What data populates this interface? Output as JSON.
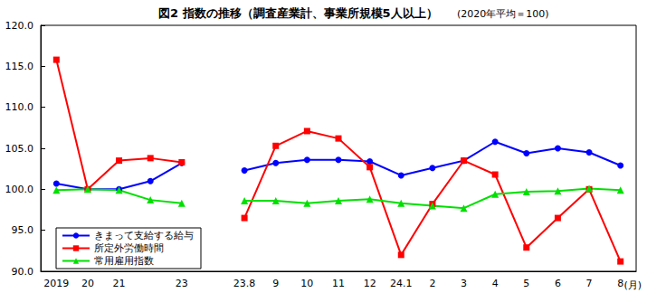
{
  "chart_data": {
    "type": "line",
    "title": "図2 指数の推移（調査産業計、事業所規模5人以上）",
    "subtitle": "(2020年平均＝100)",
    "x_label": "(月)",
    "categories": [
      "2019",
      "20",
      "21",
      null,
      "23",
      null,
      "23.8",
      "9",
      "10",
      "11",
      "12",
      "24.1",
      "2",
      "3",
      "4",
      "5",
      "6",
      "7",
      "8"
    ],
    "series": [
      {
        "name": "きまって支給する給与",
        "color": "#0000ff",
        "marker": "circle",
        "line_style": "solid",
        "values": [
          100.7,
          100.0,
          100.0,
          101.0,
          103.2,
          null,
          102.3,
          103.2,
          103.6,
          103.6,
          103.4,
          101.7,
          102.6,
          103.5,
          105.8,
          104.4,
          105.0,
          104.5,
          102.9
        ]
      },
      {
        "name": "所定外労働時間",
        "color": "#ff0000",
        "marker": "square",
        "line_style": "solid",
        "values": [
          115.8,
          100.0,
          103.5,
          103.8,
          103.3,
          null,
          96.5,
          105.3,
          107.1,
          106.2,
          102.7,
          92.0,
          98.2,
          103.5,
          101.8,
          92.9,
          96.5,
          100.0,
          91.2
        ]
      },
      {
        "name": "常用雇用指数",
        "color": "#00e000",
        "marker": "triangle",
        "line_style": "solid",
        "values": [
          99.9,
          100.0,
          99.9,
          98.7,
          98.3,
          null,
          98.6,
          98.6,
          98.3,
          98.6,
          98.8,
          98.3,
          98.0,
          97.7,
          99.4,
          99.7,
          99.8,
          100.1,
          99.9
        ]
      }
    ],
    "ylim": [
      90,
      120
    ],
    "yticks": [
      {
        "value": 90,
        "label": "90.0"
      },
      {
        "value": 95,
        "label": "95.0"
      },
      {
        "value": 100,
        "label": "100.0"
      },
      {
        "value": 105,
        "label": "105.0"
      },
      {
        "value": 110,
        "label": "110.0"
      },
      {
        "value": 115,
        "label": "115.0"
      },
      {
        "value": 120,
        "label": "120.0"
      }
    ],
    "grid": false,
    "legend": "lower left"
  }
}
